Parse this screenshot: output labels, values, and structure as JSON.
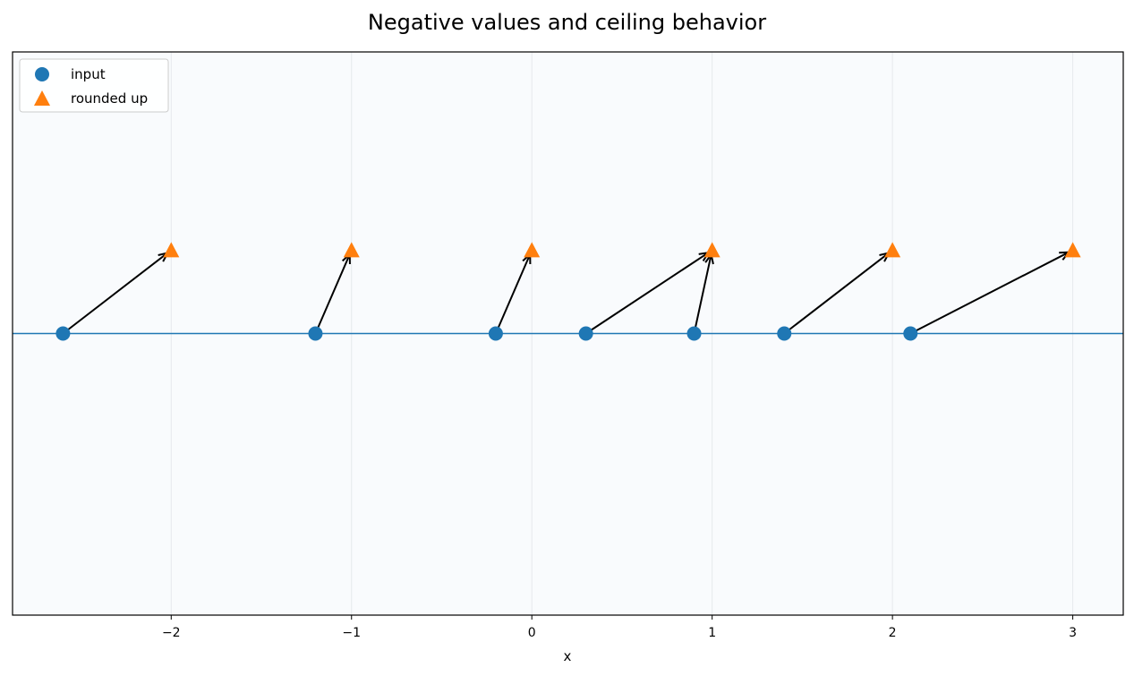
{
  "chart_data": {
    "type": "scatter",
    "title": "Negative values and ceiling behavior",
    "xlabel": "x",
    "ylabel": "",
    "xlim": [
      -2.88,
      3.28
    ],
    "ylim": [
      -1.25,
      1.25
    ],
    "grid": "vertical at integer ticks",
    "x_ticks": [
      -2,
      -1,
      0,
      1,
      2,
      3
    ],
    "x_tick_labels": [
      "−2",
      "−1",
      "0",
      "1",
      "2",
      "3"
    ],
    "baseline_y": 0,
    "legend": {
      "placement": "top-left",
      "entries": [
        "input",
        "rounded up"
      ]
    },
    "series": [
      {
        "name": "input",
        "marker": "circle",
        "color": "#1f77b4",
        "x": [
          -2.6,
          -1.2,
          -0.2,
          0.3,
          0.9,
          1.4,
          2.1
        ],
        "y": [
          0,
          0,
          0,
          0,
          0,
          0,
          0
        ]
      },
      {
        "name": "rounded up",
        "marker": "triangle",
        "color": "#ff7f0e",
        "x": [
          -2,
          -1,
          0,
          1,
          2,
          3
        ],
        "y": [
          0.37,
          0.37,
          0.37,
          0.37,
          0.37,
          0.37
        ]
      }
    ],
    "arrows": [
      {
        "from": -2.6,
        "to": -2
      },
      {
        "from": -1.2,
        "to": -1
      },
      {
        "from": -0.2,
        "to": 0
      },
      {
        "from": 0.3,
        "to": 1
      },
      {
        "from": 0.9,
        "to": 1
      },
      {
        "from": 1.4,
        "to": 2
      },
      {
        "from": 2.1,
        "to": 3
      }
    ],
    "colors": {
      "plot_background": "#f9fbfd",
      "grid": "#e6e9ec",
      "baseline": "#1f77b4",
      "arrow": "#000000"
    }
  }
}
